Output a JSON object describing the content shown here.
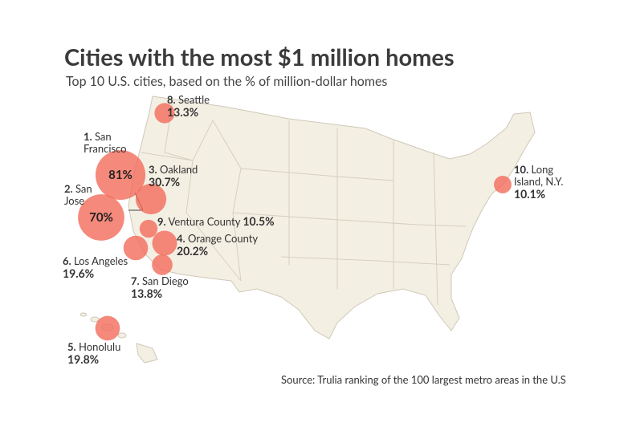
{
  "title": "Cities with the most $1 million homes",
  "subtitle": "Top 10 U.S. cities, based on the % of million-dollar homes",
  "source": "Source: Trulia ranking of the 100 largest metro areas in the U.S",
  "cities": [
    {
      "rank": "1.",
      "name": "San Francisco",
      "value": 81,
      "value_label": "81%"
    },
    {
      "rank": "2.",
      "name": "San Jose",
      "value": 70,
      "value_label": "70%"
    },
    {
      "rank": "3.",
      "name": "Oakland",
      "value": 30.7,
      "value_label": "30.7%"
    },
    {
      "rank": "4.",
      "name": "Orange County",
      "value": 20.2,
      "value_label": "20.2%"
    },
    {
      "rank": "5.",
      "name": "Honolulu",
      "value": 19.8,
      "value_label": "19.8%"
    },
    {
      "rank": "6.",
      "name": "Los Angeles",
      "value": 19.6,
      "value_label": "19.6%"
    },
    {
      "rank": "7.",
      "name": "San Diego",
      "value": 13.8,
      "value_label": "13.8%"
    },
    {
      "rank": "8.",
      "name": "Seattle",
      "value": 13.3,
      "value_label": "13.3%"
    },
    {
      "rank": "9.",
      "name": "Ventura County",
      "value": 10.5,
      "value_label": "10.5%"
    },
    {
      "rank": "10.",
      "name": "Long Island, N.Y.",
      "value": 10.1,
      "value_label": "10.1%"
    }
  ]
}
